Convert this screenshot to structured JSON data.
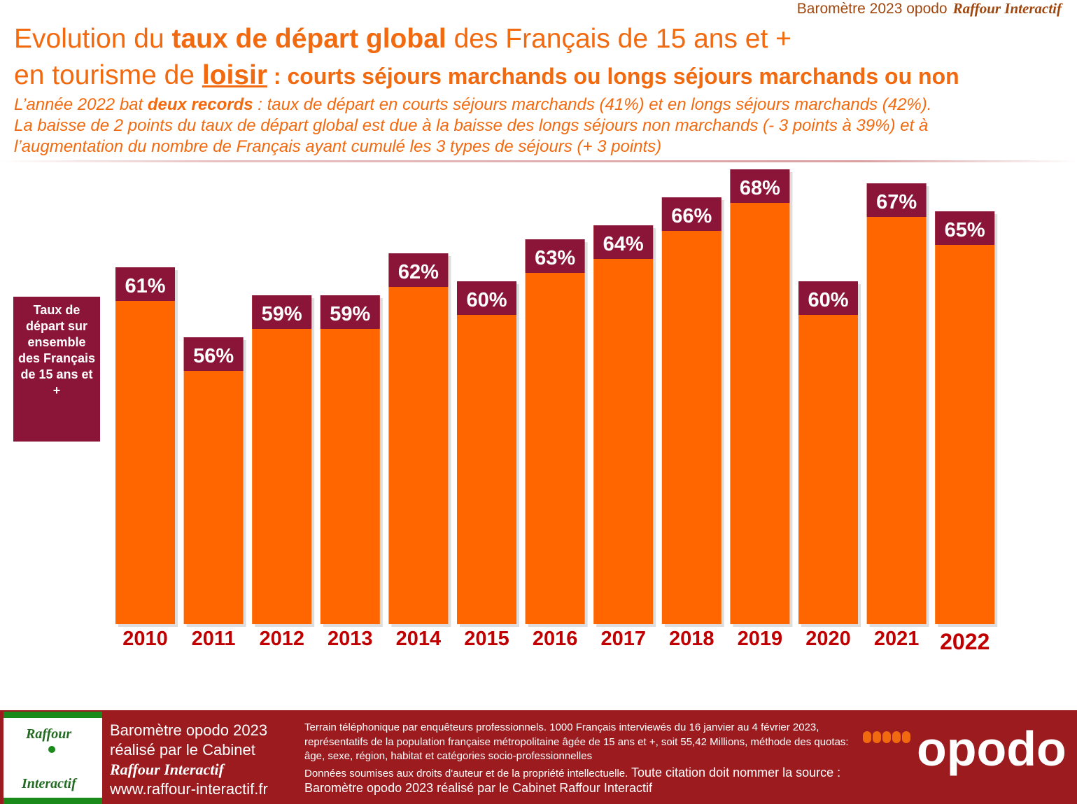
{
  "header": {
    "brand": "Baromètre 2023 opodo",
    "brand_italic": "Raffour Interactif"
  },
  "chart_data": {
    "type": "bar",
    "title_line1": {
      "a": "Evolution du ",
      "b": "taux de départ global",
      "c": " des Français de 15 ans et +"
    },
    "title_line2": {
      "a": "en tourisme de ",
      "b": "loisir",
      "c": " : courts séjours marchands ou longs séjours marchands ou non"
    },
    "subtitle": [
      {
        "a": "L’année 2022 bat ",
        "b": "deux records",
        "c": " : taux de départ en courts séjours marchands (41%) et en longs séjours marchands (42%)."
      },
      {
        "a": "La baisse de 2 points du taux de départ global est due à la baisse des longs séjours non marchands (- 3 points à 39%) et à"
      },
      {
        "a": "l’augmentation du nombre de Français ayant cumulé les 3 types de séjours (+ 3 points)"
      }
    ],
    "ylabel": "Taux de départ sur ensemble des Français de 15 ans et +",
    "categories": [
      "2010",
      "2011",
      "2012",
      "2013",
      "2014",
      "2015",
      "2016",
      "2017",
      "2018",
      "2019",
      "2020",
      "2021",
      "2022"
    ],
    "values": [
      61,
      56,
      59,
      59,
      62,
      60,
      63,
      64,
      66,
      68,
      60,
      67,
      65
    ],
    "data_labels": [
      "61%",
      "56%",
      "59%",
      "59%",
      "62%",
      "60%",
      "63%",
      "64%",
      "66%",
      "68%",
      "60%",
      "67%",
      "65%"
    ],
    "bar_color": "#ff6600",
    "label_box_color": "#8b1538",
    "tick_color": "#c00000",
    "grid": false
  },
  "footer": {
    "line1": "Baromètre opodo 2023",
    "line2": "réalisé par le Cabinet",
    "line3": "Raffour Interactif",
    "line4": "www.raffour-interactif.fr",
    "logo_top": "Raffour",
    "logo_bottom": "Interactif",
    "method": "Terrain téléphonique par enquêteurs professionnels. 1000 Français interviewés du 16 janvier au 4 février 2023, représentatifs de la population française métropolitaine âgée de 15 ans et +, soit 55,42 Millions, méthode des quotas: âge, sexe, région, habitat et catégories socio-professionnelles",
    "rights": "Données soumises aux droits d'auteur et de la propriété intellectuelle.",
    "cite": " Toute citation doit nommer la source : Baromètre opodo 2023 réalisé par le Cabinet Raffour Interactif",
    "opodo": "opodo"
  }
}
